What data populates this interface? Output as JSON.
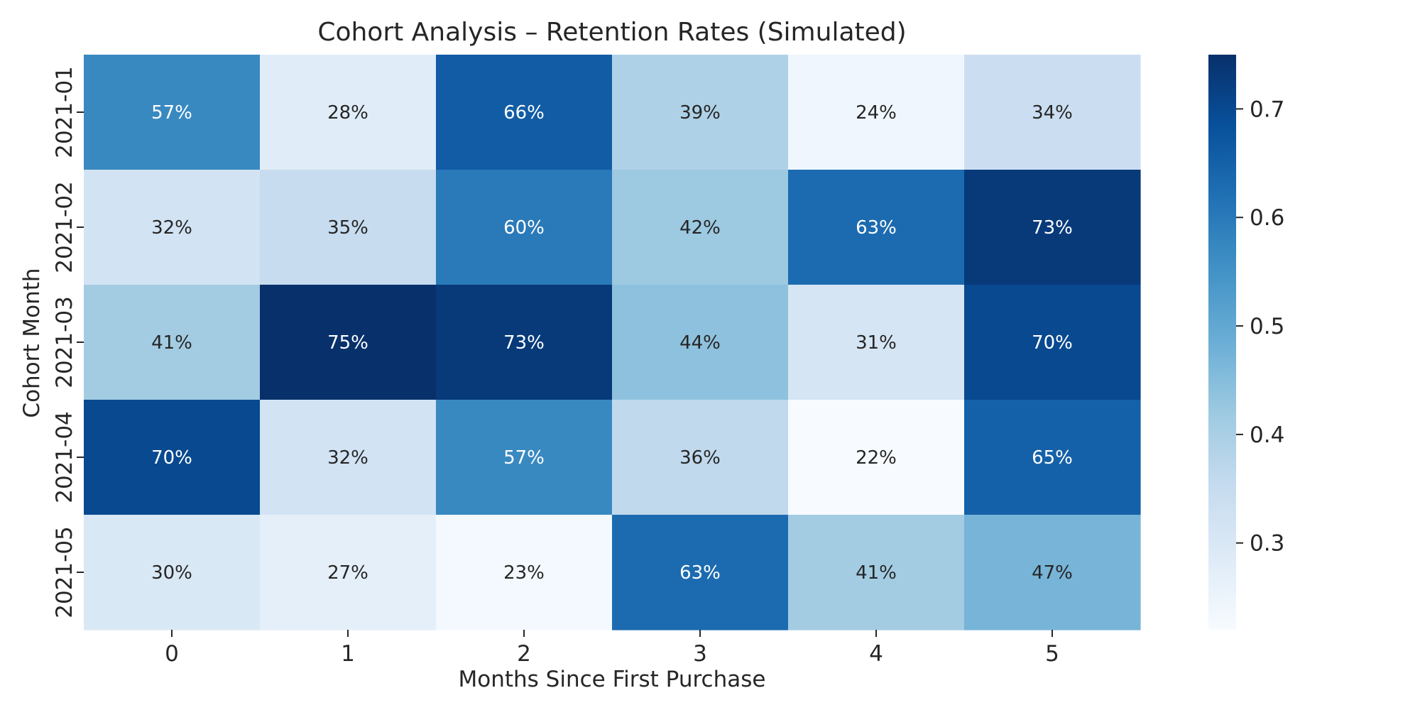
{
  "chart_data": {
    "type": "heatmap",
    "title": "Cohort Analysis – Retention Rates (Simulated)",
    "xlabel": "Months Since First Purchase",
    "ylabel": "Cohort Month",
    "x_categories": [
      "0",
      "1",
      "2",
      "3",
      "4",
      "5"
    ],
    "y_categories": [
      "2021-01",
      "2021-02",
      "2021-03",
      "2021-04",
      "2021-05"
    ],
    "values": [
      [
        0.57,
        0.28,
        0.66,
        0.39,
        0.24,
        0.34
      ],
      [
        0.32,
        0.35,
        0.6,
        0.42,
        0.63,
        0.73
      ],
      [
        0.41,
        0.75,
        0.73,
        0.44,
        0.31,
        0.7
      ],
      [
        0.7,
        0.32,
        0.57,
        0.36,
        0.22,
        0.65
      ],
      [
        0.3,
        0.27,
        0.23,
        0.63,
        0.41,
        0.47
      ]
    ],
    "annotations": [
      [
        "57%",
        "28%",
        "66%",
        "39%",
        "24%",
        "34%"
      ],
      [
        "32%",
        "35%",
        "60%",
        "42%",
        "63%",
        "73%"
      ],
      [
        "41%",
        "75%",
        "73%",
        "44%",
        "31%",
        "70%"
      ],
      [
        "70%",
        "32%",
        "57%",
        "36%",
        "22%",
        "65%"
      ],
      [
        "30%",
        "27%",
        "23%",
        "63%",
        "41%",
        "47%"
      ]
    ],
    "colormap": "Blues",
    "color_range": [
      0.22,
      0.75
    ],
    "colorbar_ticks": [
      "0.3",
      "0.4",
      "0.5",
      "0.6",
      "0.7"
    ],
    "colorbar_tick_values": [
      0.3,
      0.4,
      0.5,
      0.6,
      0.7
    ],
    "grid": false,
    "legend": "colorbar-right"
  }
}
